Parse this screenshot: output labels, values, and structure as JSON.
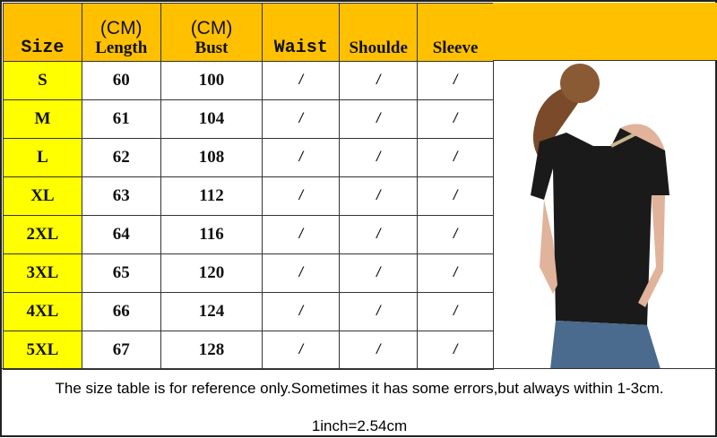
{
  "header": {
    "size": "Size",
    "length_unit": "(CM)",
    "length": "Length",
    "bust_unit": "(CM)",
    "bust": "Bust",
    "waist": "Waist",
    "shoulder": "Shoulde",
    "sleeve": "Sleeve"
  },
  "rows": [
    {
      "size": "S",
      "length": "60",
      "bust": "100",
      "waist": "/",
      "shoulder": "/",
      "sleeve": "/"
    },
    {
      "size": "M",
      "length": "61",
      "bust": "104",
      "waist": "/",
      "shoulder": "/",
      "sleeve": "/"
    },
    {
      "size": "L",
      "length": "62",
      "bust": "108",
      "waist": "/",
      "shoulder": "/",
      "sleeve": "/"
    },
    {
      "size": "XL",
      "length": "63",
      "bust": "112",
      "waist": "/",
      "shoulder": "/",
      "sleeve": "/"
    },
    {
      "size": "2XL",
      "length": "64",
      "bust": "116",
      "waist": "/",
      "shoulder": "/",
      "sleeve": "/"
    },
    {
      "size": "3XL",
      "length": "65",
      "bust": "120",
      "waist": "/",
      "shoulder": "/",
      "sleeve": "/"
    },
    {
      "size": "4XL",
      "length": "66",
      "bust": "124",
      "waist": "/",
      "shoulder": "/",
      "sleeve": "/"
    },
    {
      "size": "5XL",
      "length": "67",
      "bust": "128",
      "waist": "/",
      "shoulder": "/",
      "sleeve": "/"
    }
  ],
  "footer": {
    "note": "The size table is for reference only.Sometimes it has some errors,but always within 1-3cm.",
    "conversion": "1inch=2.54cm"
  },
  "colors": {
    "header": "#ffc000",
    "size_cell": "#ffff00",
    "shirt": "#1a1a1a"
  }
}
